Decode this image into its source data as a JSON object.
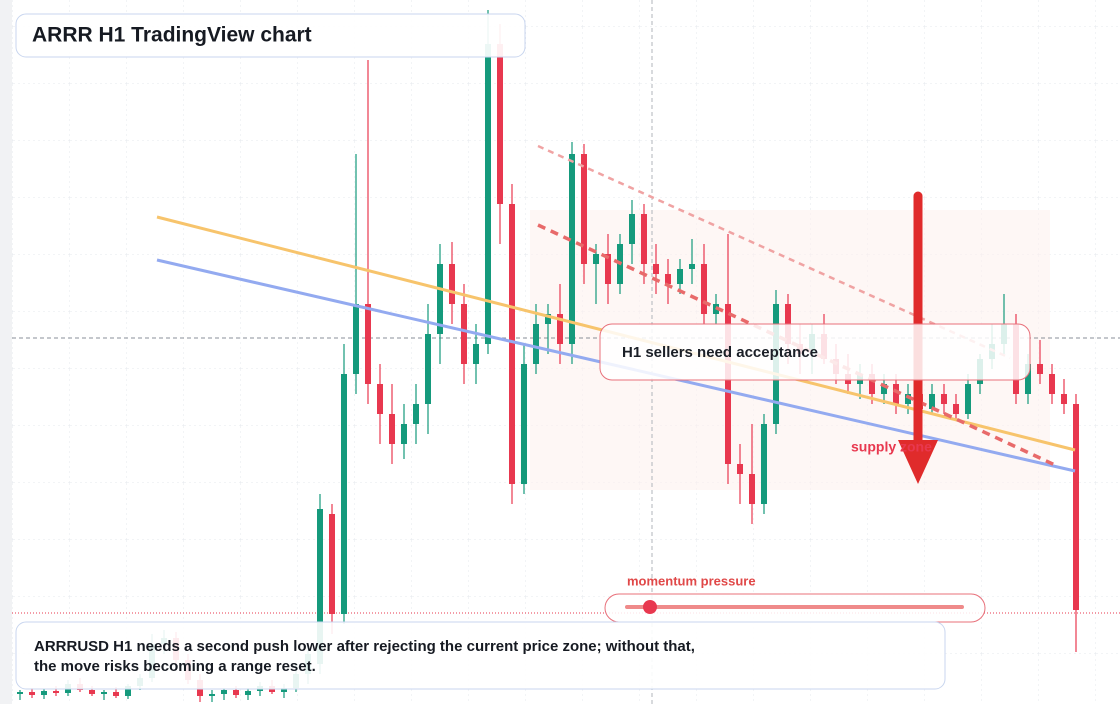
{
  "chart_data": {
    "type": "candlestick",
    "title": "ARRR H1 TradingView chart",
    "annotations": {
      "callout": "H1 sellers need acceptance",
      "zone": "supply zone",
      "indicator": "momentum pressure"
    },
    "note": [
      "ARRRUSD H1 needs a second push lower after rejecting the current price zone; without that,",
      "the move risks becoming a range reset."
    ],
    "up_color": "#159a7c",
    "down_color": "#e8384f",
    "ylim": [
      0,
      704
    ],
    "candles": [
      [
        10,
        14,
        4,
        12
      ],
      [
        12,
        16,
        6,
        9
      ],
      [
        9,
        15,
        5,
        13
      ],
      [
        13,
        18,
        8,
        11
      ],
      [
        11,
        24,
        8,
        20
      ],
      [
        20,
        26,
        12,
        14
      ],
      [
        14,
        18,
        8,
        10
      ],
      [
        10,
        14,
        4,
        12
      ],
      [
        12,
        17,
        6,
        8
      ],
      [
        8,
        20,
        5,
        18
      ],
      [
        18,
        30,
        14,
        26
      ],
      [
        26,
        70,
        22,
        60
      ],
      [
        60,
        74,
        50,
        66
      ],
      [
        66,
        72,
        40,
        44
      ],
      [
        44,
        50,
        20,
        24
      ],
      [
        24,
        30,
        2,
        8
      ],
      [
        8,
        14,
        2,
        10
      ],
      [
        10,
        16,
        4,
        14
      ],
      [
        14,
        18,
        6,
        9
      ],
      [
        9,
        16,
        4,
        13
      ],
      [
        13,
        22,
        8,
        18
      ],
      [
        18,
        24,
        10,
        12
      ],
      [
        12,
        20,
        6,
        16
      ],
      [
        16,
        40,
        12,
        30
      ],
      [
        30,
        60,
        20,
        50
      ],
      [
        40,
        210,
        30,
        195
      ],
      [
        190,
        200,
        70,
        90
      ],
      [
        90,
        360,
        80,
        330
      ],
      [
        330,
        550,
        310,
        400
      ],
      [
        400,
        644,
        300,
        320
      ],
      [
        320,
        340,
        260,
        290
      ],
      [
        290,
        320,
        240,
        260
      ],
      [
        260,
        300,
        245,
        280
      ],
      [
        280,
        320,
        260,
        300
      ],
      [
        300,
        400,
        270,
        370
      ],
      [
        370,
        460,
        340,
        440
      ],
      [
        440,
        462,
        380,
        400
      ],
      [
        400,
        420,
        320,
        340
      ],
      [
        340,
        380,
        320,
        360
      ],
      [
        360,
        694,
        350,
        660
      ],
      [
        660,
        680,
        460,
        500
      ],
      [
        500,
        520,
        200,
        220
      ],
      [
        220,
        360,
        210,
        340
      ],
      [
        340,
        400,
        330,
        380
      ],
      [
        380,
        400,
        350,
        390
      ],
      [
        390,
        420,
        340,
        360
      ],
      [
        360,
        562,
        340,
        550
      ],
      [
        550,
        560,
        420,
        440
      ],
      [
        440,
        460,
        400,
        450
      ],
      [
        450,
        470,
        400,
        420
      ],
      [
        420,
        470,
        410,
        460
      ],
      [
        460,
        504,
        440,
        490
      ],
      [
        490,
        500,
        420,
        440
      ],
      [
        440,
        460,
        410,
        430
      ],
      [
        430,
        445,
        400,
        420
      ],
      [
        420,
        445,
        410,
        435
      ],
      [
        435,
        465,
        420,
        440
      ],
      [
        440,
        460,
        380,
        390
      ],
      [
        390,
        410,
        380,
        400
      ],
      [
        400,
        470,
        220,
        240
      ],
      [
        240,
        260,
        200,
        230
      ],
      [
        230,
        280,
        180,
        200
      ],
      [
        200,
        290,
        190,
        280
      ],
      [
        280,
        414,
        270,
        400
      ],
      [
        400,
        410,
        340,
        360
      ],
      [
        360,
        380,
        330,
        350
      ],
      [
        350,
        380,
        330,
        370
      ],
      [
        370,
        390,
        340,
        345
      ],
      [
        345,
        360,
        320,
        330
      ],
      [
        330,
        350,
        310,
        320
      ],
      [
        320,
        340,
        305,
        330
      ],
      [
        330,
        340,
        300,
        310
      ],
      [
        310,
        330,
        300,
        320
      ],
      [
        320,
        330,
        290,
        300
      ],
      [
        300,
        320,
        290,
        310
      ],
      [
        310,
        320,
        285,
        295
      ],
      [
        295,
        320,
        290,
        310
      ],
      [
        310,
        320,
        290,
        300
      ],
      [
        300,
        310,
        285,
        290
      ],
      [
        290,
        330,
        285,
        320
      ],
      [
        320,
        350,
        310,
        345
      ],
      [
        345,
        380,
        335,
        360
      ],
      [
        360,
        410,
        350,
        380
      ],
      [
        380,
        390,
        300,
        310
      ],
      [
        310,
        350,
        300,
        340
      ],
      [
        340,
        364,
        320,
        330
      ],
      [
        330,
        340,
        300,
        310
      ],
      [
        310,
        325,
        290,
        300
      ],
      [
        300,
        310,
        52,
        94
      ]
    ]
  }
}
